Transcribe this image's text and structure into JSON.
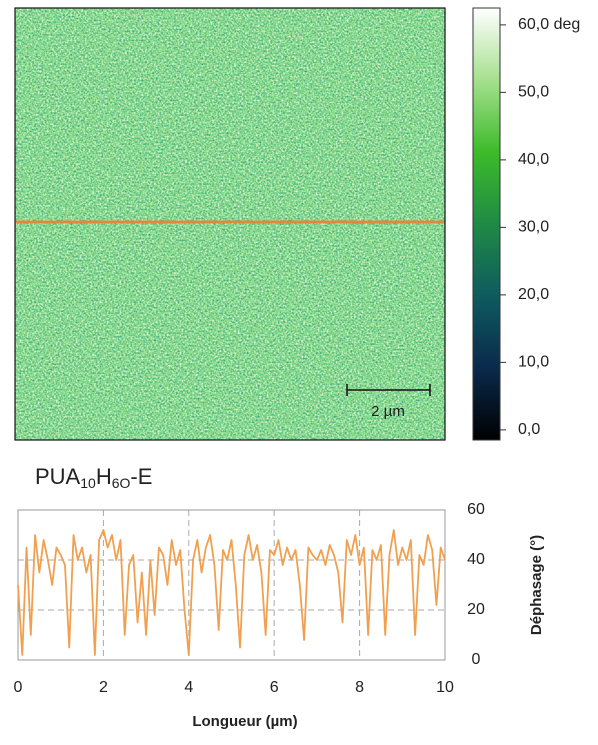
{
  "chart_data": [
    {
      "type": "heatmap",
      "colorbar": {
        "lim": [
          -1.5,
          62.5
        ],
        "ticks": [
          {
            "value": 0,
            "label": "0,0"
          },
          {
            "value": 10,
            "label": "10,0"
          },
          {
            "value": 20,
            "label": "20,0"
          },
          {
            "value": 30,
            "label": "30,0"
          },
          {
            "value": 40,
            "label": "40,0"
          },
          {
            "value": 50,
            "label": "50,0"
          },
          {
            "value": 60,
            "label": "60,0 deg"
          }
        ],
        "colormap": [
          "#000000",
          "#0a2a4c",
          "#0e5b5e",
          "#1f8a45",
          "#3dbb2a",
          "#a6e08f",
          "#ffffff"
        ]
      },
      "scale_bar": "2 µm",
      "profile_line_color": "#e2883a"
    },
    {
      "type": "line",
      "title_parts": [
        "PUA",
        "10",
        "H",
        "6O",
        "-E"
      ],
      "xlabel": "Longueur (µm)",
      "ylabel": "Déphasage (°)",
      "xlim": [
        0,
        10
      ],
      "xticks": [
        0,
        2,
        4,
        6,
        8,
        10
      ],
      "ylim": [
        0,
        60
      ],
      "yticks": [
        0,
        20,
        40,
        60
      ],
      "grid": true,
      "color": "#f0a050",
      "x": [
        0,
        0.1,
        0.2,
        0.3,
        0.4,
        0.5,
        0.6,
        0.7,
        0.8,
        0.9,
        1,
        1.1,
        1.2,
        1.3,
        1.4,
        1.5,
        1.6,
        1.7,
        1.8,
        1.9,
        2,
        2.1,
        2.2,
        2.3,
        2.4,
        2.5,
        2.6,
        2.7,
        2.8,
        2.9,
        3,
        3.1,
        3.2,
        3.3,
        3.4,
        3.5,
        3.6,
        3.7,
        3.8,
        3.9,
        4,
        4.1,
        4.2,
        4.3,
        4.4,
        4.5,
        4.6,
        4.7,
        4.8,
        4.9,
        5,
        5.1,
        5.2,
        5.3,
        5.4,
        5.5,
        5.6,
        5.7,
        5.8,
        5.9,
        6,
        6.1,
        6.2,
        6.3,
        6.4,
        6.5,
        6.6,
        6.7,
        6.8,
        6.9,
        7,
        7.1,
        7.2,
        7.3,
        7.4,
        7.5,
        7.6,
        7.7,
        7.8,
        7.9,
        8,
        8.1,
        8.2,
        8.3,
        8.4,
        8.5,
        8.6,
        8.7,
        8.8,
        8.9,
        9,
        9.1,
        9.2,
        9.3,
        9.4,
        9.5,
        9.6,
        9.7,
        9.8,
        9.9,
        10
      ],
      "values": [
        30,
        2,
        45,
        10,
        50,
        35,
        48,
        40,
        30,
        45,
        42,
        38,
        5,
        50,
        40,
        45,
        35,
        42,
        2,
        48,
        52,
        45,
        50,
        40,
        48,
        10,
        38,
        42,
        15,
        35,
        10,
        40,
        18,
        45,
        42,
        30,
        48,
        38,
        44,
        20,
        2,
        40,
        48,
        35,
        45,
        50,
        38,
        12,
        44,
        40,
        48,
        30,
        5,
        42,
        50,
        40,
        46,
        35,
        10,
        44,
        42,
        48,
        38,
        45,
        40,
        44,
        30,
        8,
        45,
        42,
        40,
        44,
        38,
        46,
        42,
        35,
        15,
        48,
        42,
        50,
        38,
        45,
        10,
        44,
        40,
        46,
        10,
        42,
        52,
        38,
        45,
        40,
        48,
        10,
        42,
        38,
        50,
        44,
        22,
        45,
        40
      ]
    }
  ]
}
